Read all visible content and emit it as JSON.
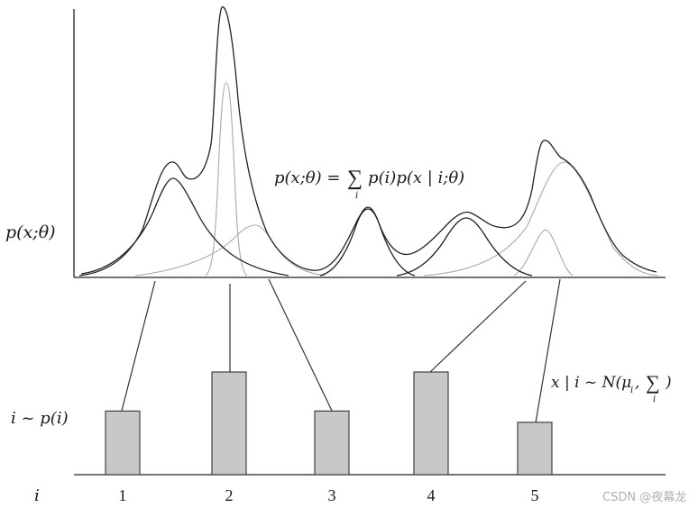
{
  "density_label": "p(x;θ)",
  "mixture_formula": {
    "lhs": "p(x;θ) = ",
    "sum": "∑",
    "sub": "i",
    "rhs": "p(i)p(x | i;θ)"
  },
  "prior_label": "i ~ p(i)",
  "conditional_formula": {
    "lhs": "x | i ~ N(μ",
    "mu_sub": "i",
    "comma": ", ",
    "sum": "∑",
    "sum_sub": "i",
    "close": ")"
  },
  "index_label": "i",
  "components": [
    {
      "label": "1",
      "weight": 0.62
    },
    {
      "label": "2",
      "weight": 1.0
    },
    {
      "label": "3",
      "weight": 0.62
    },
    {
      "label": "4",
      "weight": 1.0
    },
    {
      "label": "5",
      "weight": 0.51
    }
  ],
  "watermark": "CSDN @夜幕龙"
}
